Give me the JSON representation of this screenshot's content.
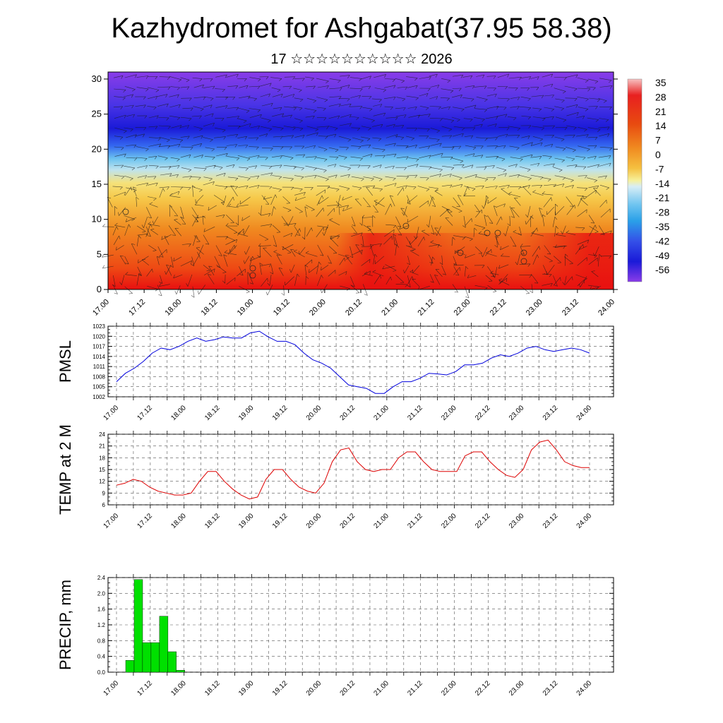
{
  "title": "Kazhydromet for Ashgabat(37.95 58.38)",
  "subtitle": "17 ☆☆☆☆☆☆☆☆☆☆ 2026",
  "chart_data": [
    {
      "type": "heatmap",
      "description_field": "vertical temperature cross-section with wind barbs",
      "x_ticks": [
        "17.00",
        "17.12",
        "18.00",
        "18.12",
        "19.00",
        "19.12",
        "20.00",
        "20.12",
        "21.00",
        "21.12",
        "22.00",
        "22.12",
        "23.00",
        "23.12",
        "24.00"
      ],
      "y_ticks": [
        0,
        5,
        10,
        15,
        20,
        25,
        30
      ],
      "ylim": [
        0,
        31
      ],
      "colorbar_labels": [
        "35",
        "28",
        "21",
        "14",
        "7",
        "0",
        "-7",
        "-14",
        "-21",
        "-28",
        "-35",
        "-42",
        "-49",
        "-56"
      ],
      "colors": {
        "hot": "#e81010",
        "warm": "#f08a20",
        "yellow": "#f5e27a",
        "light_blue": "#a8dcf2",
        "blue": "#3468f0",
        "deep_blue": "#1a1ad8",
        "violet": "#8a3ce8"
      }
    },
    {
      "type": "line",
      "ylabel": "PMSL",
      "x_ticks": [
        "17.00",
        "17.12",
        "18.00",
        "18.12",
        "19.00",
        "19.12",
        "20.00",
        "20.12",
        "21.00",
        "21.12",
        "22.00",
        "22.12",
        "23.00",
        "23.12",
        "24.00"
      ],
      "y_ticks": [
        "1002",
        "1005",
        "1008",
        "1011",
        "1014",
        "1017",
        "1020",
        "1023"
      ],
      "ylim": [
        1002,
        1023
      ],
      "line_color": "#0000dd",
      "values": [
        1006.5,
        1009,
        1010.5,
        1012.5,
        1015,
        1016.5,
        1016,
        1017,
        1018.5,
        1019.5,
        1018.5,
        1019,
        1019.8,
        1019.5,
        1019.5,
        1021,
        1021.5,
        1019.8,
        1018.5,
        1018.5,
        1017.5,
        1015,
        1013,
        1012,
        1010.5,
        1008,
        1005.5,
        1005,
        1004.5,
        1003,
        1003,
        1005,
        1006.5,
        1006.5,
        1007.5,
        1009,
        1008.8,
        1008.5,
        1009.5,
        1011.5,
        1011.5,
        1012,
        1013.5,
        1014.5,
        1014,
        1015,
        1016.5,
        1017,
        1016,
        1015.5,
        1016,
        1016.5,
        1016,
        1015
      ]
    },
    {
      "type": "line",
      "ylabel": "TEMP at 2 M",
      "x_ticks": [
        "17.00",
        "17.12",
        "18.00",
        "18.12",
        "19.00",
        "19.12",
        "20.00",
        "20.12",
        "21.00",
        "21.12",
        "22.00",
        "22.12",
        "23.00",
        "23.12",
        "24.00"
      ],
      "y_ticks": [
        "6",
        "9",
        "12",
        "15",
        "18",
        "21",
        "24"
      ],
      "ylim": [
        6,
        24
      ],
      "line_color": "#dd0000",
      "values": [
        11,
        11.5,
        12.5,
        12,
        10.5,
        9.5,
        9,
        8.5,
        8.5,
        9,
        12,
        14.5,
        14.5,
        12,
        10,
        8.5,
        7.5,
        8,
        12.5,
        15,
        15,
        12.5,
        10.5,
        9.5,
        9,
        11.5,
        17,
        20,
        20.5,
        17,
        15,
        14.5,
        15,
        15,
        18,
        19.5,
        19.5,
        17,
        15,
        14.5,
        14.5,
        14.5,
        18.5,
        19.5,
        19.5,
        17,
        15,
        13.5,
        13,
        15,
        20,
        22,
        22.5,
        20,
        17,
        16,
        15.5,
        15.5
      ]
    },
    {
      "type": "bar",
      "ylabel": "PRECIP, mm",
      "x_ticks": [
        "17.00",
        "17.12",
        "18.00",
        "18.12",
        "19.00",
        "19.12",
        "20.00",
        "20.12",
        "21.00",
        "21.12",
        "22.00",
        "22.12",
        "23.00",
        "23.12",
        "24.00"
      ],
      "y_ticks": [
        "0.0",
        "0.4",
        "0.8",
        "1.2",
        "1.6",
        "2.0",
        "2.4"
      ],
      "ylim": [
        0,
        2.4
      ],
      "bar_color": "#00e000",
      "values": [
        0.3,
        2.35,
        0.75,
        0.75,
        1.42,
        0.52,
        0.05
      ]
    }
  ]
}
